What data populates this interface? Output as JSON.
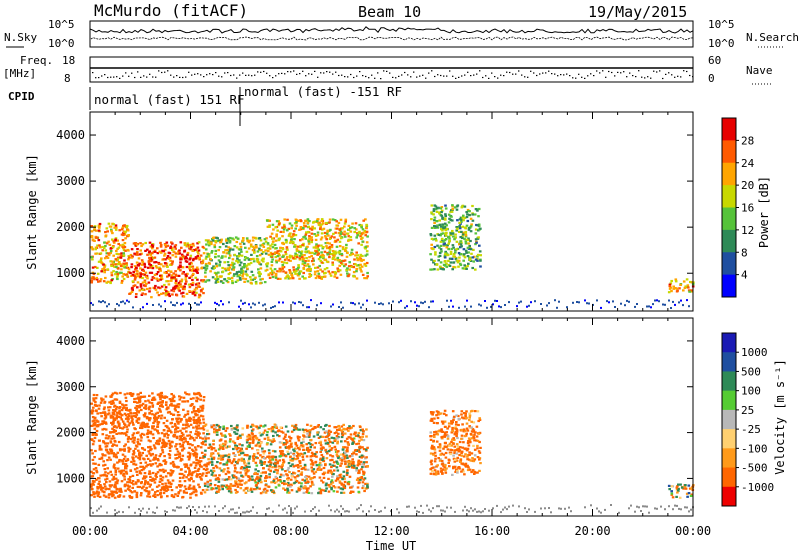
{
  "header": {
    "station": "McMurdo (fitACF)",
    "beam": "Beam 10",
    "date": "19/May/2015"
  },
  "noise_panel": {
    "left_label": "N.Sky",
    "right_label": "N.Search",
    "left_ticks": [
      "10^5",
      "10^0"
    ],
    "right_ticks": [
      "10^5",
      "10^0"
    ]
  },
  "freq_panel": {
    "left_label": "Freq.",
    "left_unit": "[MHz]",
    "left_ticks": [
      "18",
      "8"
    ],
    "right_label": "Nave",
    "right_ticks": [
      "60",
      "0"
    ]
  },
  "cpid_panel": {
    "label": "CPID",
    "segments": [
      "normal (fast) 151 RF",
      "normal (fast) -151 RF"
    ]
  },
  "colors": {
    "power_scale": [
      "#0000ff",
      "#1f4fa0",
      "#2e8a57",
      "#56c33a",
      "#c8d800",
      "#ffa500",
      "#ff5a00",
      "#e60000"
    ],
    "velocity_scale": [
      "#ee0000",
      "#ff6600",
      "#ff9a1a",
      "#ffd070",
      "#b8b8b8",
      "#55cc33",
      "#2e8a57",
      "#1f4fa0",
      "#1a1ab4"
    ],
    "ground_scatter": "#8a8a8a"
  },
  "chart_data": [
    {
      "type": "heatmap",
      "title": "Power",
      "xlabel": "Time UT",
      "ylabel": "Slant Range [km]",
      "xlim": [
        "00:00",
        "24:00"
      ],
      "ylim": [
        180,
        4500
      ],
      "x_ticks": [
        "00:00",
        "04:00",
        "08:00",
        "12:00",
        "16:00",
        "20:00",
        "00:00"
      ],
      "y_ticks": [
        "1000",
        "2000",
        "3000",
        "4000"
      ],
      "colorbar": {
        "label": "Power [dB]",
        "range": [
          0,
          32
        ],
        "tick_labels": [
          "4",
          "8",
          "12",
          "16",
          "20",
          "24",
          "28"
        ]
      },
      "features": [
        {
          "start_hour": 0.0,
          "end_hour": 1.5,
          "range_km": [
            800,
            2100
          ],
          "typical_dB": 22
        },
        {
          "start_hour": 1.5,
          "end_hour": 4.5,
          "range_km": [
            500,
            1700
          ],
          "typical_dB": 26
        },
        {
          "start_hour": 4.5,
          "end_hour": 7.0,
          "range_km": [
            800,
            1800
          ],
          "typical_dB": 16
        },
        {
          "start_hour": 7.0,
          "end_hour": 11.0,
          "range_km": [
            900,
            2200
          ],
          "typical_dB": 20
        },
        {
          "start_hour": 13.5,
          "end_hour": 15.5,
          "range_km": [
            1100,
            2500
          ],
          "typical_dB": 14
        },
        {
          "start_hour": 23.0,
          "end_hour": 24.0,
          "range_km": [
            600,
            900
          ],
          "typical_dB": 22
        }
      ]
    },
    {
      "type": "heatmap",
      "title": "Velocity",
      "xlabel": "Time UT",
      "ylabel": "Slant Range [km]",
      "xlim": [
        "00:00",
        "24:00"
      ],
      "ylim": [
        180,
        4500
      ],
      "x_ticks": [
        "00:00",
        "04:00",
        "08:00",
        "12:00",
        "16:00",
        "20:00",
        "00:00"
      ],
      "y_ticks": [
        "1000",
        "2000",
        "3000",
        "4000"
      ],
      "colorbar": {
        "label": "Velocity [m s⁻¹]",
        "range": [
          -1000,
          1000
        ],
        "tick_labels": [
          "1000",
          "500",
          "100",
          "25",
          "-25",
          "-100",
          "-500",
          "-1000"
        ]
      },
      "features": [
        {
          "start_hour": 0.0,
          "end_hour": 4.5,
          "range_km": [
            600,
            2900
          ],
          "typical_ms": -300
        },
        {
          "start_hour": 4.5,
          "end_hour": 11.0,
          "range_km": [
            700,
            2200
          ],
          "typical_ms": -100
        },
        {
          "start_hour": 13.5,
          "end_hour": 15.5,
          "range_km": [
            1100,
            2500
          ],
          "typical_ms": -200
        },
        {
          "start_hour": 23.0,
          "end_hour": 24.0,
          "range_km": [
            600,
            900
          ],
          "typical_ms": -50
        }
      ]
    }
  ]
}
